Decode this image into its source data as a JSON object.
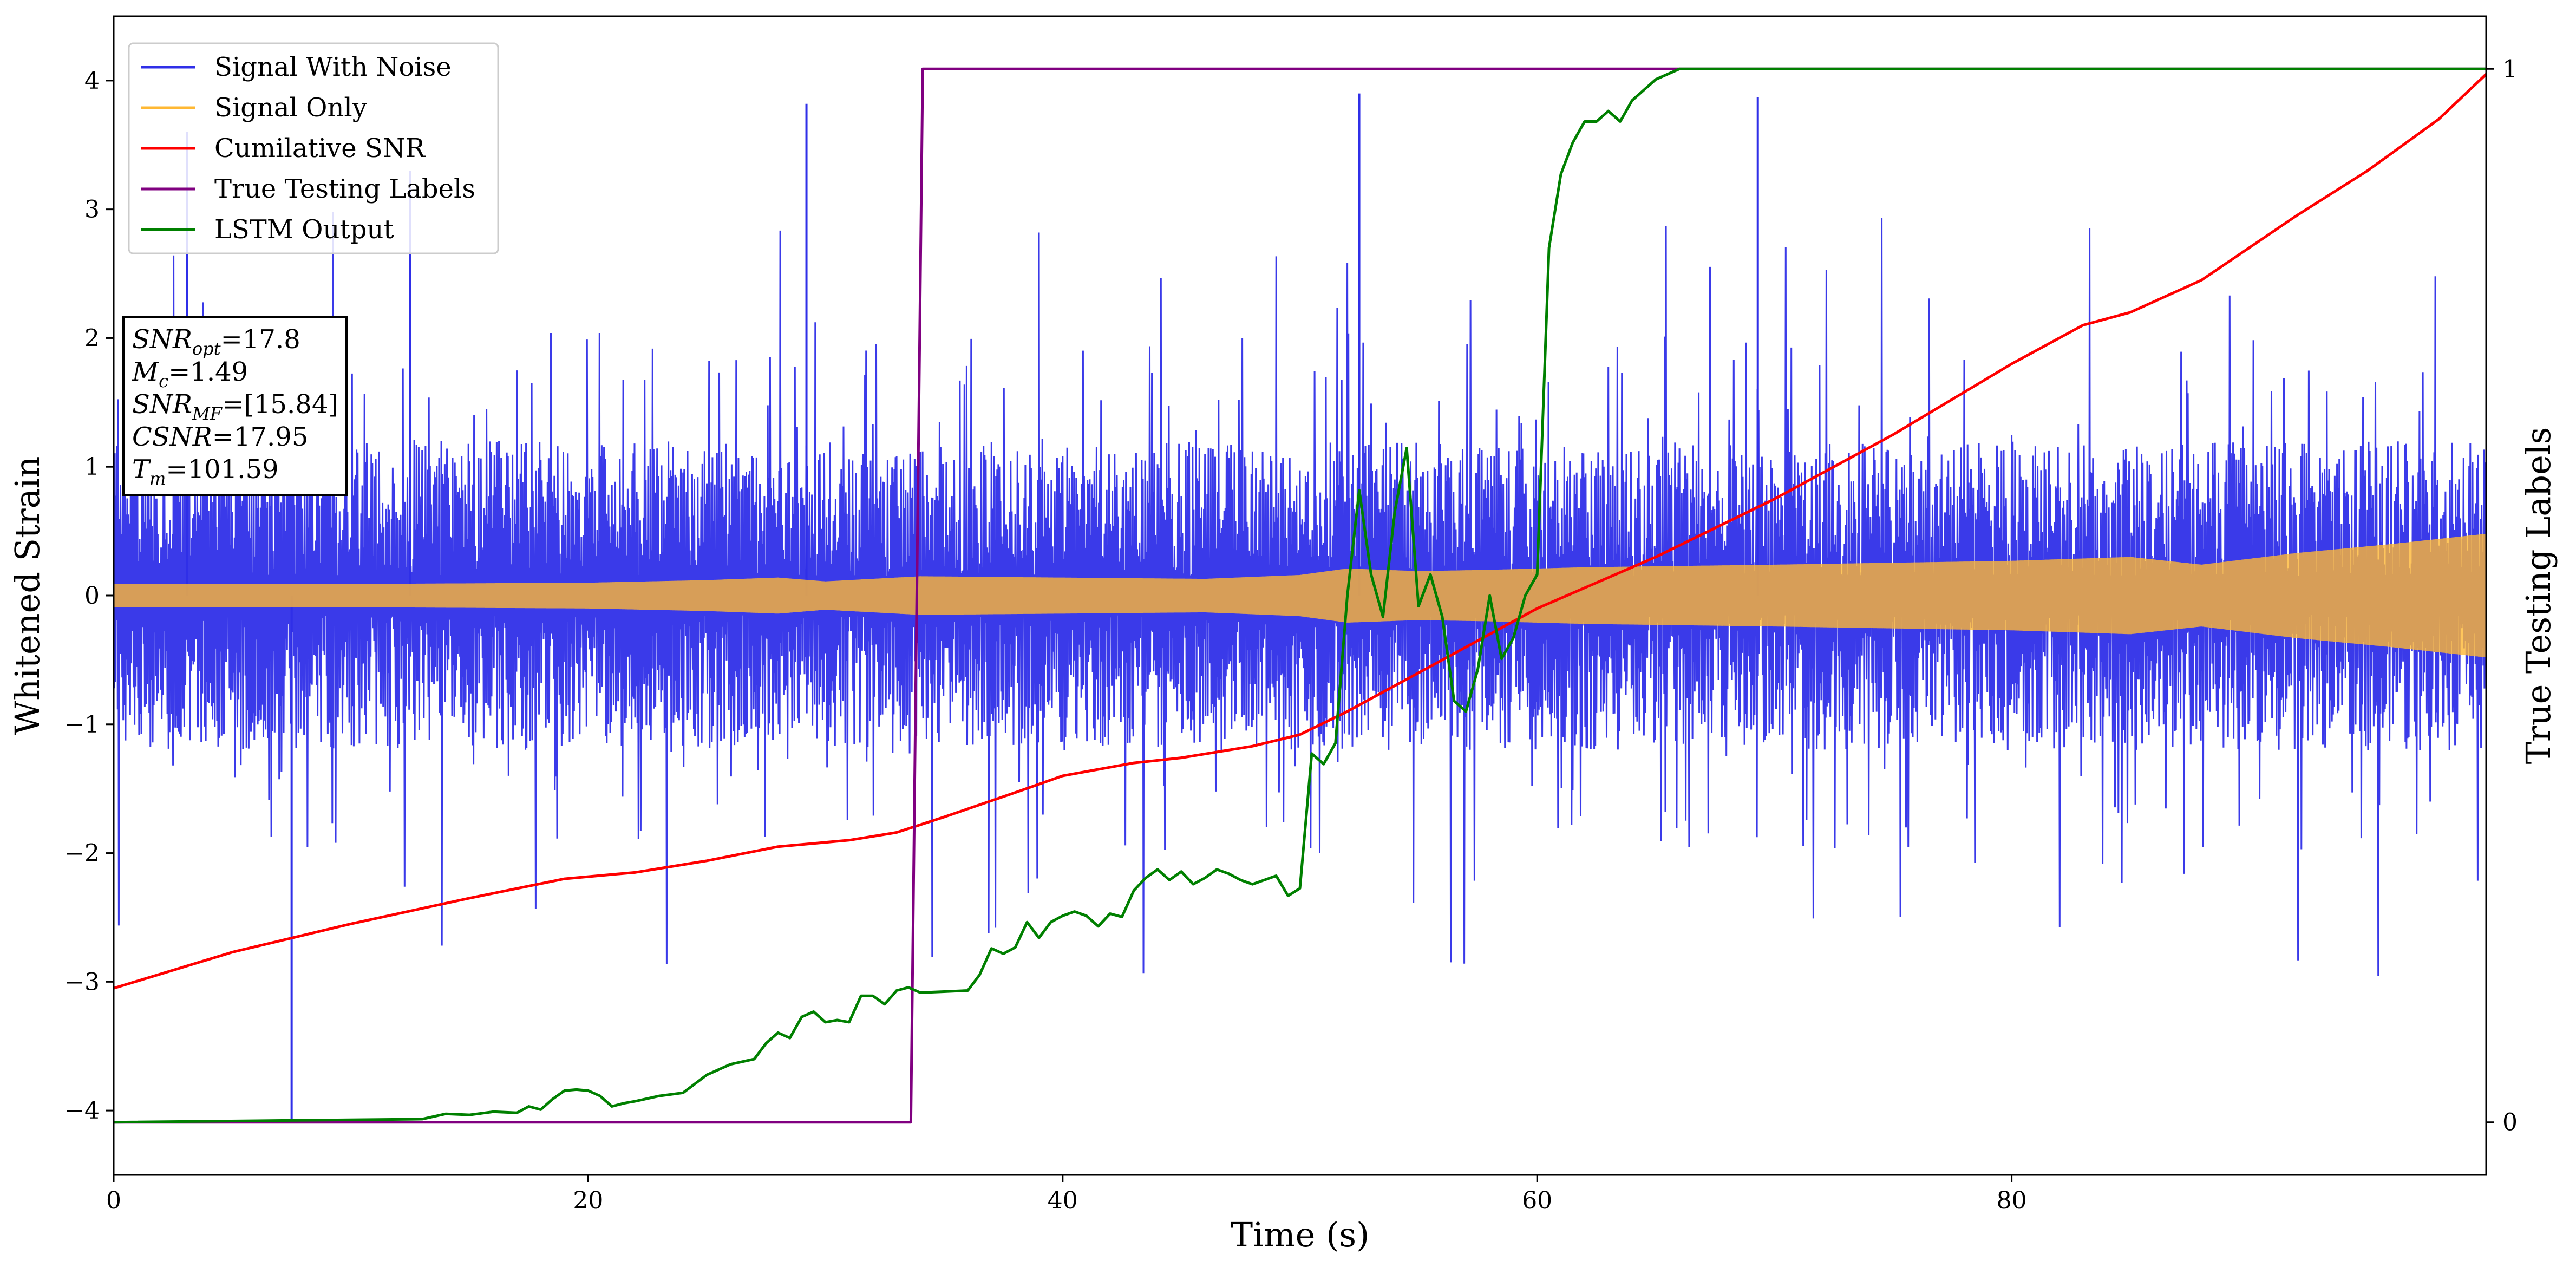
{
  "chart_data": {
    "type": "line",
    "title": "",
    "xlabel": "Time (s)",
    "ylabel": "Whitened Strain",
    "y2label": "True Testing Labels",
    "xlim": [
      0,
      100
    ],
    "ylim": [
      -4.5,
      4.5
    ],
    "y2lim": [
      -0.05,
      1.05
    ],
    "xticks": [
      0,
      20,
      40,
      60,
      80
    ],
    "xticklabels": [
      "0",
      "20",
      "40",
      "60",
      "80"
    ],
    "yticks": [
      -4,
      -3,
      -2,
      -1,
      0,
      1,
      2,
      3,
      4
    ],
    "yticklabels": [
      "−4",
      "−3",
      "−2",
      "−1",
      "0",
      "1",
      "2",
      "3",
      "4"
    ],
    "y2ticks": [
      0,
      1
    ],
    "y2ticklabels": [
      "0",
      "1"
    ],
    "grid": false,
    "legend_position": "top-left",
    "legend": [
      {
        "label": "Signal With Noise",
        "color": "#2f2fe8"
      },
      {
        "label": "Signal Only",
        "color": "#ffb833"
      },
      {
        "label": "Cumilative SNR",
        "color": "#ff0000"
      },
      {
        "label": "True Testing Labels",
        "color": "#800080"
      },
      {
        "label": "LSTM Output",
        "color": "#008000"
      }
    ],
    "annotation_lines": [
      {
        "main": "SNR",
        "sub": "opt",
        "rest": "=17.8"
      },
      {
        "main": "M",
        "sub": "c",
        "rest": "=1.49"
      },
      {
        "main": "SNR",
        "sub": "MF",
        "rest": "=[15.84]"
      },
      {
        "main": "CSNR",
        "sub": "",
        "rest": "=17.95"
      },
      {
        "main": "T",
        "sub": "m",
        "rest": "=101.59"
      }
    ],
    "series": [
      {
        "name": "Signal With Noise",
        "axis": "left",
        "color": "#2f2fe8",
        "note": "dense noise, mostly within ±1.2, spikes up to ±3.9",
        "typical_amplitude": 1.2,
        "notable_spikes": [
          [
            7.5,
            -4.1
          ],
          [
            3.1,
            3.6
          ],
          [
            12.5,
            3.3
          ],
          [
            52.5,
            3.9
          ],
          [
            69.3,
            3.87
          ],
          [
            29.2,
            3.82
          ]
        ]
      },
      {
        "name": "Signal Only",
        "axis": "left",
        "color": "#ffb833",
        "envelope_x": [
          0,
          10,
          20,
          25,
          28,
          30,
          34,
          40,
          46,
          50,
          52,
          55,
          58,
          62,
          70,
          80,
          85,
          88,
          92,
          96,
          100
        ],
        "envelope_y": [
          0.09,
          0.09,
          0.1,
          0.12,
          0.14,
          0.11,
          0.15,
          0.14,
          0.13,
          0.16,
          0.21,
          0.19,
          0.2,
          0.22,
          0.24,
          0.27,
          0.3,
          0.24,
          0.33,
          0.4,
          0.48
        ]
      },
      {
        "name": "Cumilative SNR",
        "axis": "left",
        "color": "#ff0000",
        "x": [
          0,
          5,
          10,
          15,
          19,
          22,
          25,
          28,
          31,
          33,
          35,
          38,
          40,
          43,
          45,
          48,
          50,
          52,
          55,
          58,
          60,
          65,
          70,
          75,
          80,
          83,
          85,
          88,
          92,
          95,
          98,
          100
        ],
        "y": [
          -3.05,
          -2.77,
          -2.55,
          -2.35,
          -2.2,
          -2.15,
          -2.06,
          -1.95,
          -1.9,
          -1.84,
          -1.72,
          -1.53,
          -1.4,
          -1.3,
          -1.26,
          -1.17,
          -1.08,
          -0.9,
          -0.6,
          -0.3,
          -0.1,
          0.3,
          0.75,
          1.25,
          1.8,
          2.1,
          2.2,
          2.45,
          2.95,
          3.3,
          3.7,
          4.05
        ]
      },
      {
        "name": "True Testing Labels",
        "axis": "right",
        "color": "#800080",
        "x": [
          0,
          33.6,
          34.1,
          100
        ],
        "y": [
          0,
          0,
          1,
          1
        ]
      },
      {
        "name": "LSTM Output",
        "axis": "right",
        "color": "#008000",
        "x": [
          0,
          13,
          14,
          15,
          16,
          17,
          17.5,
          18,
          18.5,
          19,
          19.5,
          20,
          20.5,
          21,
          21.5,
          22,
          23,
          24,
          25,
          26,
          27,
          27.5,
          28,
          28.5,
          29,
          29.5,
          30,
          30.5,
          31,
          31.5,
          32,
          32.5,
          33,
          33.5,
          34,
          35,
          36,
          36.5,
          37,
          37.5,
          38,
          38.5,
          39,
          39.5,
          40,
          40.5,
          41,
          41.5,
          42,
          42.5,
          43,
          43.5,
          44,
          44.5,
          45,
          45.5,
          46,
          46.5,
          47,
          47.5,
          48,
          48.5,
          49,
          49.5,
          50,
          50.5,
          51,
          51.5,
          52,
          52.5,
          53,
          53.5,
          54,
          54.5,
          55,
          55.5,
          56,
          56.5,
          57,
          57.5,
          58,
          58.5,
          59,
          59.5,
          60,
          60.5,
          61,
          61.5,
          62,
          62.5,
          63,
          63.5,
          64,
          65,
          66,
          67,
          68,
          70,
          100
        ],
        "y": [
          0,
          0.003,
          0.008,
          0.007,
          0.01,
          0.009,
          0.015,
          0.012,
          0.022,
          0.03,
          0.031,
          0.03,
          0.025,
          0.015,
          0.018,
          0.02,
          0.025,
          0.028,
          0.045,
          0.055,
          0.06,
          0.075,
          0.085,
          0.08,
          0.1,
          0.105,
          0.095,
          0.097,
          0.095,
          0.12,
          0.12,
          0.112,
          0.125,
          0.128,
          0.123,
          0.124,
          0.125,
          0.14,
          0.165,
          0.16,
          0.166,
          0.19,
          0.175,
          0.19,
          0.196,
          0.2,
          0.196,
          0.186,
          0.198,
          0.195,
          0.22,
          0.232,
          0.24,
          0.23,
          0.238,
          0.226,
          0.232,
          0.24,
          0.236,
          0.23,
          0.226,
          0.23,
          0.234,
          0.215,
          0.222,
          0.35,
          0.34,
          0.36,
          0.5,
          0.6,
          0.52,
          0.48,
          0.58,
          0.64,
          0.49,
          0.52,
          0.48,
          0.4,
          0.39,
          0.43,
          0.5,
          0.44,
          0.46,
          0.5,
          0.52,
          0.83,
          0.9,
          0.93,
          0.95,
          0.95,
          0.96,
          0.95,
          0.97,
          0.99,
          1.0,
          1.0,
          1.0,
          1.0,
          1.0
        ]
      }
    ]
  }
}
